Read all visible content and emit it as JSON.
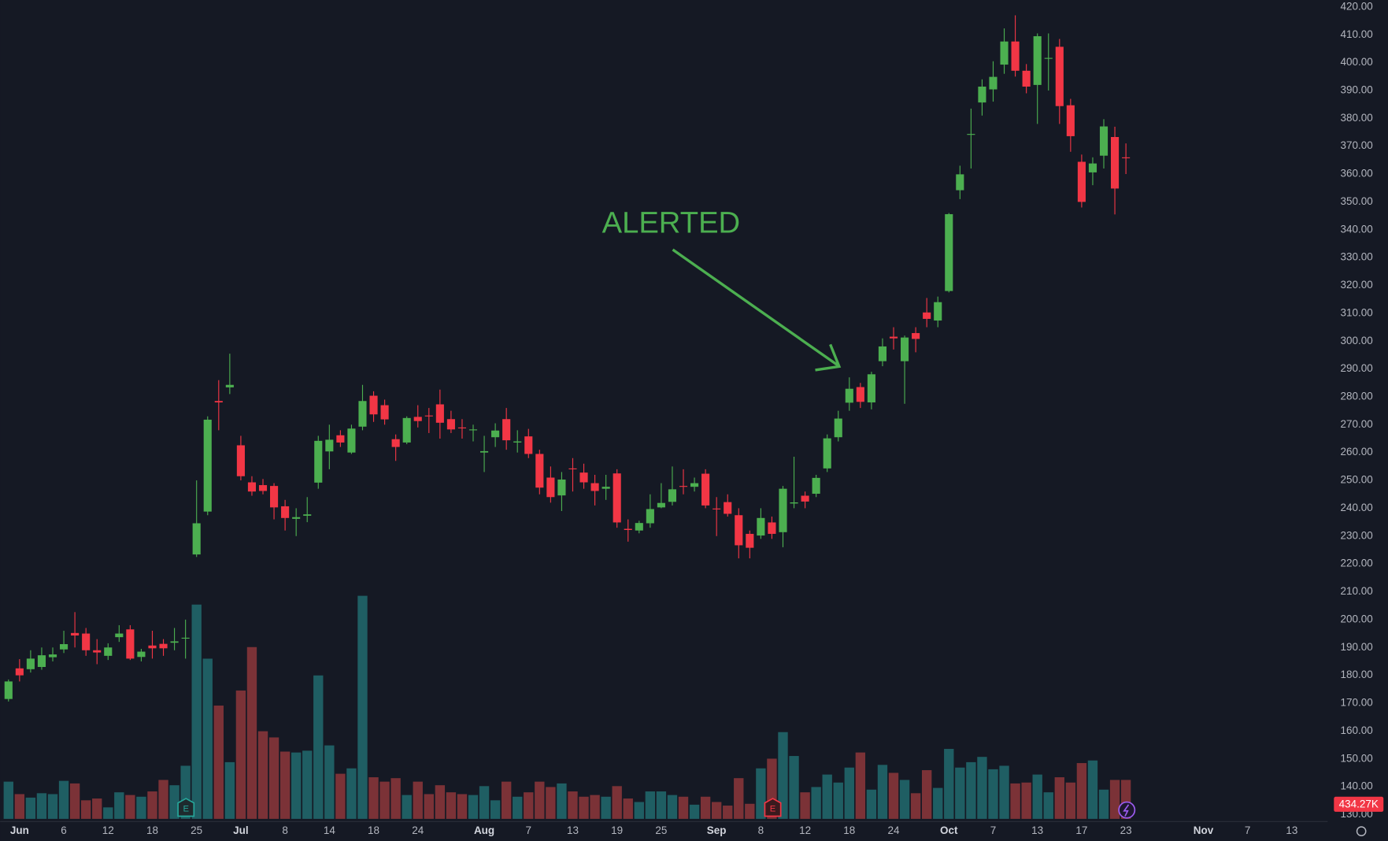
{
  "chart_data": {
    "type": "candlestick",
    "annotation": "ALERTED",
    "volume_label": "434.27K",
    "earnings_labels": [
      "E",
      "E"
    ],
    "up_color": "#4caf50",
    "down_color": "#f23645",
    "volume_up_color": "#1f5e63",
    "volume_down_color": "#7b3237",
    "categories": [
      null,
      "Jun",
      null,
      null,
      null,
      "6",
      null,
      null,
      null,
      "12",
      null,
      null,
      null,
      "18",
      null,
      null,
      null,
      "25",
      null,
      null,
      null,
      "Jul",
      null,
      null,
      null,
      "8",
      null,
      null,
      null,
      "14",
      null,
      null,
      null,
      "18",
      null,
      null,
      null,
      "24",
      null,
      null,
      null,
      null,
      null,
      "Aug",
      null,
      null,
      null,
      "7",
      null,
      null,
      null,
      "13",
      null,
      null,
      null,
      "19",
      null,
      null,
      null,
      "25",
      null,
      null,
      null,
      null,
      "Sep",
      null,
      null,
      null,
      "8",
      null,
      null,
      null,
      "12",
      null,
      null,
      null,
      "18",
      null,
      null,
      null,
      "24",
      null,
      null,
      null,
      null,
      "Oct",
      null,
      null,
      null,
      "7",
      null,
      null,
      null,
      "13",
      null,
      null,
      null,
      "17",
      null,
      null,
      null,
      "23",
      null,
      null,
      null,
      null,
      null,
      null,
      "Nov",
      null,
      null,
      null,
      "7",
      null,
      null,
      null,
      "13"
    ],
    "open": [
      171.5,
      182.5,
      182.2,
      183,
      186.5,
      189.3,
      195.2,
      195,
      189,
      187,
      193.7,
      196.5,
      186.6,
      190.7,
      191.3,
      191.7,
      193.3,
      223.4,
      238.8,
      278.5,
      283.4,
      262.6,
      249.3,
      248.3,
      248,
      240.7,
      236.2,
      237.3,
      249.2,
      260.4,
      266.2,
      260,
      269.3,
      280.4,
      277,
      264.8,
      263.6,
      272.8,
      273.3,
      277.3,
      272,
      269,
      268,
      260,
      265.5,
      272,
      263.6,
      265.8,
      259.5,
      251,
      244.6,
      254.3,
      252.8,
      249,
      247,
      252.5,
      232.6,
      232,
      234.6,
      240.3,
      242.3,
      248,
      247.7,
      252.4,
      239.9,
      242.2,
      237.5,
      230.8,
      230.2,
      234.9,
      231.4,
      241.7,
      244.5,
      245.2,
      254.3,
      265.5,
      277.9,
      283.5,
      278,
      292.8,
      301.6,
      292.8,
      302.9,
      310.3,
      307.4,
      318,
      354.2,
      374.1,
      385.7,
      390.4,
      399.3,
      407.6,
      397.1,
      392,
      401.4,
      405.7,
      384.7,
      364.4,
      360.6,
      366.6,
      373.3,
      366,
      null,
      null,
      null,
      null,
      null,
      null,
      null,
      null,
      null,
      null,
      null,
      null,
      null,
      null,
      null
    ],
    "high": [
      178.5,
      185.8,
      189,
      190,
      190,
      196,
      202.7,
      197,
      193,
      191.5,
      198,
      198,
      189.5,
      196,
      193,
      197,
      200,
      250,
      273,
      286,
      295.5,
      266,
      251.5,
      250.5,
      249,
      243,
      240,
      244,
      266,
      270,
      268,
      270,
      284.3,
      282,
      279,
      266.5,
      273,
      277,
      276,
      282.6,
      275,
      272,
      270,
      266,
      270.5,
      276,
      268,
      268.5,
      261,
      255,
      253,
      258,
      256,
      252,
      252,
      254,
      236,
      235.5,
      245,
      249,
      255,
      254,
      251,
      254,
      244,
      245,
      240,
      232,
      240,
      237,
      248,
      258.5,
      246,
      252,
      266.5,
      275,
      287,
      285,
      289,
      301,
      305,
      302,
      305,
      315.5,
      316,
      346,
      363,
      383.5,
      394,
      400.5,
      412.3,
      417,
      399.5,
      410.5,
      410.5,
      408.5,
      387,
      367,
      366,
      379.7,
      377,
      371,
      null,
      null,
      null,
      null,
      null,
      null,
      null,
      null,
      null,
      null,
      null,
      null,
      null,
      null,
      null
    ],
    "low": [
      170.6,
      177.8,
      181,
      182,
      185,
      188,
      190,
      187,
      184,
      185.5,
      192,
      185.5,
      185,
      186,
      187,
      189,
      186,
      222.5,
      237.5,
      268,
      281,
      250,
      244.5,
      245,
      236,
      232,
      230,
      235,
      247,
      254,
      262,
      259.5,
      268,
      271,
      270,
      257,
      263,
      269,
      267,
      265,
      267,
      265,
      264,
      253,
      262,
      261,
      260,
      258,
      245,
      242,
      239,
      246,
      247,
      241,
      243,
      233,
      228,
      231,
      233,
      240,
      241,
      245,
      246,
      240,
      230,
      237,
      222,
      222,
      229,
      229,
      226,
      240,
      240,
      244,
      253,
      264,
      275,
      276,
      275.5,
      291,
      297,
      277.5,
      296,
      305,
      305,
      317.5,
      351,
      362,
      381,
      386,
      396,
      395,
      389,
      378,
      390,
      378,
      368,
      348,
      356,
      362,
      345.5,
      360,
      null,
      null,
      null,
      null,
      null,
      null,
      null,
      null,
      null,
      null,
      null,
      null,
      null,
      null,
      null
    ],
    "close": [
      177.8,
      180,
      186,
      187.2,
      187.5,
      191.2,
      194.3,
      189,
      188.2,
      190,
      195,
      186,
      188.5,
      189.7,
      189.7,
      192.2,
      193.5,
      234.6,
      271.8,
      278,
      284.3,
      251.5,
      246,
      246.2,
      240.3,
      236.5,
      236.8,
      237.8,
      264.2,
      264.6,
      263.6,
      268.6,
      278.5,
      273.7,
      271.9,
      262,
      272.4,
      271.3,
      273,
      270.7,
      268.3,
      268.7,
      268.3,
      260.5,
      267.9,
      264.4,
      264,
      259.5,
      247.4,
      244,
      250.3,
      254,
      249.3,
      246.2,
      247.7,
      234.9,
      232.2,
      234.7,
      239.7,
      241.9,
      246.8,
      247.7,
      249,
      241,
      239.6,
      238,
      226.7,
      225.8,
      236.5,
      230.8,
      247,
      242.1,
      242.4,
      250.9,
      265.1,
      272.2,
      282.9,
      278.2,
      288.1,
      298.1,
      301,
      301.3,
      300.8,
      308,
      314,
      345.6,
      359.9,
      374.4,
      391.4,
      394.9,
      407.6,
      397.1,
      391.4,
      409.5,
      401.7,
      384.4,
      373.6,
      350,
      363.8,
      377.1,
      354.8,
      365.9,
      null,
      null,
      null,
      null,
      null,
      null,
      null,
      null,
      null,
      null,
      null,
      null,
      null,
      null,
      null
    ],
    "volume": [
      415,
      276,
      237,
      286,
      276,
      424,
      395,
      207,
      227,
      128,
      296,
      266,
      247,
      306,
      434,
      375,
      592,
      2389,
      1786,
      1263,
      632,
      1431,
      1915,
      977,
      908,
      750,
      740,
      760,
      1599,
      819,
      503,
      563,
      2487,
      464,
      415,
      454,
      266,
      415,
      276,
      375,
      296,
      276,
      266,
      365,
      207,
      415,
      247,
      296,
      415,
      355,
      395,
      306,
      247,
      266,
      247,
      365,
      227,
      188,
      306,
      306,
      266,
      247,
      158,
      247,
      188,
      148,
      454,
      168,
      563,
      671,
      967,
      701,
      296,
      355,
      494,
      405,
      572,
      740,
      326,
      602,
      513,
      434,
      286,
      543,
      345,
      780,
      572,
      632,
      691,
      553,
      592,
      395,
      405,
      494,
      296,
      464,
      405,
      622,
      651,
      326,
      434,
      434.27,
      null,
      null,
      null,
      null,
      null,
      null,
      null,
      null,
      null,
      null,
      null,
      null,
      null,
      null,
      null
    ],
    "ylim": [
      127.5,
      422.5
    ],
    "yticks": [
      {
        "value": 420,
        "label": "420.00"
      },
      {
        "value": 410,
        "label": "410.00"
      },
      {
        "value": 400,
        "label": "400.00"
      },
      {
        "value": 390,
        "label": "390.00"
      },
      {
        "value": 380,
        "label": "380.00"
      },
      {
        "value": 370,
        "label": "370.00"
      },
      {
        "value": 360,
        "label": "360.00"
      },
      {
        "value": 350,
        "label": "350.00"
      },
      {
        "value": 340,
        "label": "340.00"
      },
      {
        "value": 330,
        "label": "330.00"
      },
      {
        "value": 320,
        "label": "320.00"
      },
      {
        "value": 310,
        "label": "310.00"
      },
      {
        "value": 300,
        "label": "300.00"
      },
      {
        "value": 290,
        "label": "290.00"
      },
      {
        "value": 280,
        "label": "280.00"
      },
      {
        "value": 270,
        "label": "270.00"
      },
      {
        "value": 260,
        "label": "260.00"
      },
      {
        "value": 250,
        "label": "250.00"
      },
      {
        "value": 240,
        "label": "240.00"
      },
      {
        "value": 230,
        "label": "230.00"
      },
      {
        "value": 220,
        "label": "220.00"
      },
      {
        "value": 210,
        "label": "210.00"
      },
      {
        "value": 200,
        "label": "200.00"
      },
      {
        "value": 190,
        "label": "190.00"
      },
      {
        "value": 180,
        "label": "180.00"
      },
      {
        "value": 170,
        "label": "170.00"
      },
      {
        "value": 160,
        "label": "160.00"
      },
      {
        "value": 150,
        "label": "150.00"
      },
      {
        "value": 140,
        "label": "140.00"
      },
      {
        "value": 130,
        "label": "130.00"
      }
    ]
  }
}
